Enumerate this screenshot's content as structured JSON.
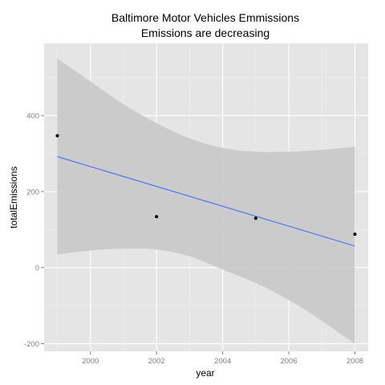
{
  "chart_data": {
    "type": "scatter",
    "title_lines": [
      "Baltimore Motor Vehicles Emmissions",
      "Emissions are decreasing"
    ],
    "xlabel": "year",
    "ylabel": "totalEmissions",
    "xlim": [
      1998.6,
      2008.4
    ],
    "ylim": [
      -220,
      590
    ],
    "x_ticks": [
      2000,
      2002,
      2004,
      2006,
      2008
    ],
    "x_tick_labels": [
      "2000",
      "2002",
      "2004",
      "2006",
      "2008"
    ],
    "y_ticks": [
      -200,
      0,
      200,
      400
    ],
    "y_tick_labels": [
      "-200",
      "0",
      "200",
      "400"
    ],
    "points": [
      {
        "x": 1999,
        "y": 347
      },
      {
        "x": 2002,
        "y": 134
      },
      {
        "x": 2005,
        "y": 130
      },
      {
        "x": 2008,
        "y": 88
      }
    ],
    "fit_line": {
      "x": [
        1999,
        2008
      ],
      "y": [
        292,
        57
      ]
    },
    "confidence_band": {
      "x": [
        1999,
        2000,
        2001,
        2002,
        2003,
        2004,
        2005,
        2006,
        2007,
        2008
      ],
      "upper": [
        550,
        490,
        430,
        380,
        340,
        315,
        305,
        305,
        310,
        318
      ],
      "lower": [
        35,
        45,
        50,
        48,
        30,
        -5,
        -40,
        -85,
        -140,
        -200
      ]
    },
    "grid": true,
    "legend": "none",
    "colors": {
      "panel": "#e5e5e5",
      "grid_major": "#ffffff",
      "grid_minor": "#f2f2f2",
      "band": "#c8c8c8",
      "fit_line": "#3366ff",
      "points": "#000000",
      "tick_text": "#7f7f7f",
      "tick_marks": "#7f7f7f"
    }
  }
}
